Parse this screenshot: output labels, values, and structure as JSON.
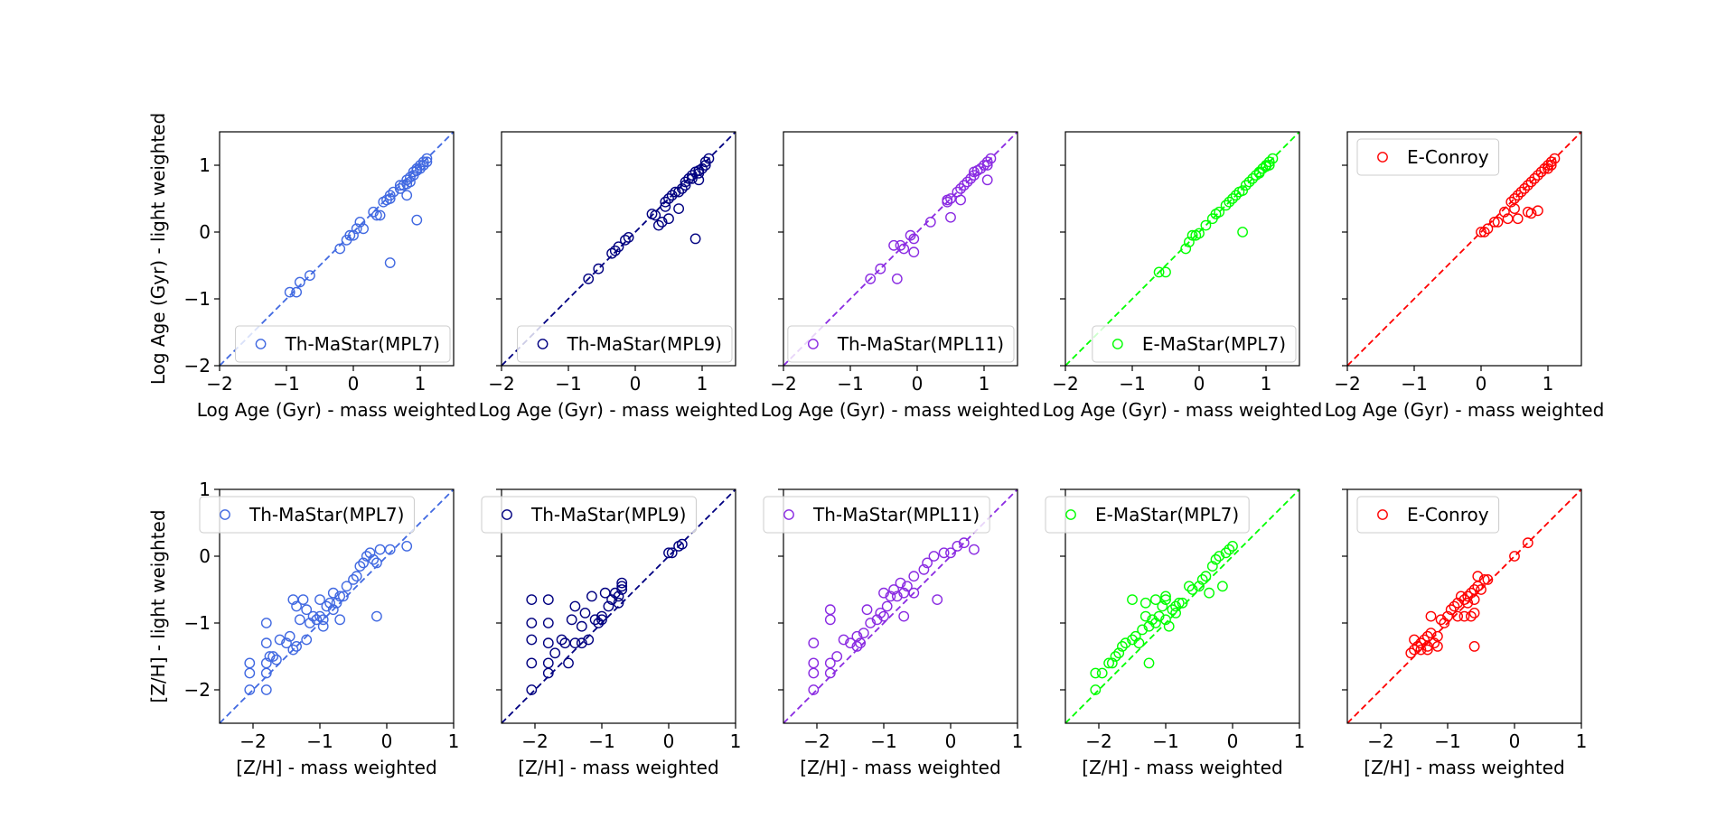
{
  "chart_data": [
    {
      "type": "scatter",
      "row": "age",
      "color": "#4169e1",
      "legend": "Th-MaStar(MPL7)",
      "legend_loc": "lower right",
      "xlabel": "Log Age (Gyr) - mass weighted",
      "ylabel": "Log Age (Gyr) - light weighted",
      "xlim": [
        -2,
        1.5
      ],
      "ylim": [
        -2,
        1.5
      ],
      "xticks": [
        -2,
        -1,
        0,
        1
      ],
      "yticks": [
        -2,
        -1,
        0,
        1
      ],
      "identity_line": true,
      "x": [
        -0.95,
        -0.85,
        -0.8,
        -0.65,
        -0.2,
        -0.1,
        -0.05,
        0.0,
        0.05,
        0.1,
        0.15,
        0.3,
        0.35,
        0.45,
        0.5,
        0.55,
        0.55,
        0.6,
        0.7,
        0.75,
        0.8,
        0.8,
        0.85,
        0.85,
        0.9,
        0.9,
        0.95,
        0.95,
        1.0,
        1.0,
        1.05,
        1.05,
        1.1,
        1.1,
        0.55,
        0.95,
        0.8,
        0.7,
        0.4
      ],
      "y": [
        -0.9,
        -0.9,
        -0.75,
        -0.65,
        -0.25,
        -0.12,
        -0.05,
        -0.05,
        0.05,
        0.15,
        0.05,
        0.3,
        0.25,
        0.45,
        0.48,
        0.5,
        -0.46,
        0.6,
        0.65,
        0.7,
        0.72,
        0.78,
        0.75,
        0.82,
        0.85,
        0.9,
        0.92,
        0.95,
        1.0,
        0.95,
        1.05,
        1.0,
        1.1,
        1.05,
        0.55,
        0.18,
        0.55,
        0.7,
        0.25
      ]
    },
    {
      "type": "scatter",
      "row": "age",
      "color": "#000080",
      "legend": "Th-MaStar(MPL9)",
      "legend_loc": "lower right",
      "xlabel": "Log Age (Gyr) - mass weighted",
      "ylabel": "",
      "xlim": [
        -2,
        1.5
      ],
      "ylim": [
        -2,
        1.5
      ],
      "xticks": [
        -2,
        -1,
        0,
        1
      ],
      "yticks": [
        -2,
        -1,
        0,
        1
      ],
      "identity_line": true,
      "x": [
        -0.7,
        -0.55,
        -0.35,
        -0.3,
        -0.25,
        -0.15,
        -0.1,
        0.25,
        0.3,
        0.4,
        0.45,
        0.45,
        0.5,
        0.55,
        0.6,
        0.65,
        0.7,
        0.75,
        0.75,
        0.8,
        0.85,
        0.85,
        0.9,
        0.95,
        0.95,
        1.0,
        1.05,
        1.05,
        1.1,
        0.9,
        0.95,
        0.65,
        0.5,
        0.35
      ],
      "y": [
        -0.7,
        -0.55,
        -0.32,
        -0.28,
        -0.22,
        -0.12,
        -0.08,
        0.27,
        0.25,
        0.15,
        0.45,
        0.38,
        0.5,
        0.55,
        0.6,
        0.6,
        0.65,
        0.7,
        0.75,
        0.8,
        0.85,
        0.8,
        0.9,
        0.92,
        0.88,
        0.95,
        1.05,
        1.0,
        1.1,
        -0.1,
        0.78,
        0.35,
        0.2,
        0.1
      ]
    },
    {
      "type": "scatter",
      "row": "age",
      "color": "#8a2be2",
      "legend": "Th-MaStar(MPL11)",
      "legend_loc": "lower right",
      "xlabel": "Log Age (Gyr) - mass weighted",
      "ylabel": "",
      "xlim": [
        -2,
        1.5
      ],
      "ylim": [
        -2,
        1.5
      ],
      "xticks": [
        -2,
        -1,
        0,
        1
      ],
      "yticks": [
        -2,
        -1,
        0,
        1
      ],
      "identity_line": true,
      "x": [
        -0.7,
        -0.55,
        -0.35,
        -0.25,
        -0.2,
        -0.1,
        -0.05,
        0.2,
        0.45,
        0.45,
        0.5,
        0.6,
        0.65,
        0.7,
        0.75,
        0.8,
        0.85,
        0.85,
        0.9,
        0.95,
        1.0,
        1.05,
        1.05,
        1.1,
        1.05,
        0.65,
        0.5,
        -0.05,
        -0.3
      ],
      "y": [
        -0.7,
        -0.55,
        -0.2,
        -0.2,
        -0.25,
        -0.05,
        -0.1,
        0.15,
        0.45,
        0.48,
        0.5,
        0.6,
        0.65,
        0.7,
        0.75,
        0.8,
        0.85,
        0.9,
        0.92,
        0.95,
        1.0,
        1.05,
        1.0,
        1.1,
        0.78,
        0.48,
        0.22,
        -0.3,
        -0.7
      ]
    },
    {
      "type": "scatter",
      "row": "age",
      "color": "#00ff00",
      "legend": "E-MaStar(MPL7)",
      "legend_loc": "lower right",
      "xlabel": "Log Age (Gyr) - mass weighted",
      "ylabel": "",
      "xlim": [
        -2,
        1.5
      ],
      "ylim": [
        -2,
        1.5
      ],
      "xticks": [
        -2,
        -1,
        0,
        1
      ],
      "yticks": [
        -2,
        -1,
        0,
        1
      ],
      "identity_line": true,
      "x": [
        -0.6,
        -0.5,
        -0.2,
        -0.15,
        -0.05,
        0.0,
        0.1,
        0.2,
        0.25,
        0.3,
        0.4,
        0.45,
        0.5,
        0.55,
        0.6,
        0.65,
        0.7,
        0.75,
        0.8,
        0.85,
        0.9,
        0.9,
        0.95,
        1.0,
        1.0,
        1.05,
        1.05,
        1.1,
        0.65,
        -0.1
      ],
      "y": [
        -0.6,
        -0.6,
        -0.25,
        -0.15,
        -0.05,
        -0.02,
        0.1,
        0.2,
        0.27,
        0.3,
        0.4,
        0.45,
        0.5,
        0.55,
        0.6,
        0.62,
        0.7,
        0.75,
        0.8,
        0.85,
        0.88,
        0.9,
        0.95,
        1.0,
        0.98,
        1.05,
        1.0,
        1.1,
        0.0,
        -0.05
      ]
    },
    {
      "type": "scatter",
      "row": "age",
      "color": "#ff0000",
      "legend": "E-Conroy",
      "legend_loc": "upper left",
      "xlabel": "Log Age (Gyr) - mass weighted",
      "ylabel": "",
      "xlim": [
        -2,
        1.5
      ],
      "ylim": [
        -2,
        1.5
      ],
      "xticks": [
        -2,
        -1,
        0,
        1
      ],
      "yticks": [
        -2,
        -1,
        0,
        1
      ],
      "identity_line": true,
      "x": [
        0.0,
        0.05,
        0.1,
        0.2,
        0.25,
        0.35,
        0.4,
        0.45,
        0.5,
        0.55,
        0.6,
        0.65,
        0.7,
        0.75,
        0.8,
        0.85,
        0.9,
        0.95,
        1.0,
        1.0,
        1.05,
        1.05,
        1.1,
        0.5,
        0.55,
        0.7,
        0.75,
        0.85
      ],
      "y": [
        0.0,
        0.0,
        0.05,
        0.15,
        0.15,
        0.3,
        0.2,
        0.45,
        0.5,
        0.55,
        0.6,
        0.65,
        0.7,
        0.75,
        0.8,
        0.85,
        0.9,
        0.95,
        1.0,
        0.95,
        1.05,
        1.0,
        1.1,
        0.35,
        0.2,
        0.3,
        0.28,
        0.32
      ]
    },
    {
      "type": "scatter",
      "row": "metallicity",
      "color": "#4169e1",
      "legend": "Th-MaStar(MPL7)",
      "legend_loc": "upper left",
      "xlabel": "[Z/H] - mass weighted",
      "ylabel": "[Z/H] - light weighted",
      "xlim": [
        -2.5,
        1
      ],
      "ylim": [
        -2.5,
        1
      ],
      "xticks": [
        -2,
        -1,
        0,
        1
      ],
      "yticks": [
        -2,
        -1,
        0,
        1
      ],
      "identity_line": true,
      "x": [
        -2.05,
        -2.05,
        -2.05,
        -1.8,
        -1.8,
        -1.8,
        -1.8,
        -1.7,
        -1.65,
        -1.6,
        -1.5,
        -1.45,
        -1.4,
        -1.4,
        -1.35,
        -1.3,
        -1.25,
        -1.2,
        -1.15,
        -1.1,
        -1.05,
        -1.0,
        -1.0,
        -0.95,
        -0.9,
        -0.85,
        -0.8,
        -0.75,
        -0.7,
        -0.7,
        -0.65,
        -0.6,
        -0.5,
        -0.45,
        -0.4,
        -0.35,
        -0.3,
        -0.25,
        -0.2,
        -0.15,
        -0.1,
        0.05,
        0.3,
        -0.15,
        -1.8,
        -1.75,
        -1.35,
        -1.2,
        -0.8,
        -0.95
      ],
      "y": [
        -2.0,
        -1.6,
        -1.75,
        -1.75,
        -1.6,
        -1.3,
        -1.0,
        -1.5,
        -1.55,
        -1.25,
        -1.3,
        -1.2,
        -1.4,
        -0.65,
        -0.75,
        -0.95,
        -0.65,
        -0.8,
        -1.0,
        -0.9,
        -0.95,
        -0.9,
        -0.65,
        -0.95,
        -0.75,
        -0.7,
        -0.55,
        -0.7,
        -0.6,
        -0.95,
        -0.6,
        -0.45,
        -0.35,
        -0.3,
        -0.15,
        -0.1,
        0.0,
        0.05,
        -0.05,
        -0.1,
        0.1,
        0.1,
        0.15,
        -0.9,
        -2.0,
        -1.5,
        -1.35,
        -1.25,
        -0.8,
        -1.05
      ]
    },
    {
      "type": "scatter",
      "row": "metallicity",
      "color": "#000080",
      "legend": "Th-MaStar(MPL9)",
      "legend_loc": "upper left",
      "xlabel": "[Z/H] - mass weighted",
      "ylabel": "",
      "xlim": [
        -2.5,
        1
      ],
      "ylim": [
        -2.5,
        1
      ],
      "xticks": [
        -2,
        -1,
        0,
        1
      ],
      "yticks": [
        -2,
        -1,
        0,
        1
      ],
      "identity_line": true,
      "x": [
        -2.05,
        -2.05,
        -2.05,
        -2.05,
        -2.05,
        -1.8,
        -1.8,
        -1.8,
        -1.8,
        -1.8,
        -1.7,
        -1.6,
        -1.55,
        -1.45,
        -1.4,
        -1.3,
        -1.3,
        -1.25,
        -1.2,
        -1.1,
        -1.05,
        -1.0,
        -1.0,
        -0.95,
        -0.9,
        -0.85,
        -0.8,
        -0.75,
        -0.75,
        -0.7,
        -0.7,
        -0.7,
        0.0,
        0.05,
        0.15,
        0.2,
        -1.5,
        -1.4,
        -1.15
      ],
      "y": [
        -2.0,
        -1.6,
        -1.25,
        -1.0,
        -0.65,
        -1.75,
        -1.6,
        -1.3,
        -1.0,
        -0.65,
        -1.45,
        -1.25,
        -1.3,
        -0.95,
        -1.3,
        -1.3,
        -1.05,
        -0.85,
        -1.25,
        -0.95,
        -1.0,
        -0.95,
        -0.9,
        -0.55,
        -0.75,
        -0.65,
        -0.55,
        -0.6,
        -0.7,
        -0.4,
        -0.5,
        -0.45,
        0.05,
        0.05,
        0.15,
        0.18,
        -1.6,
        -0.75,
        -0.6
      ]
    },
    {
      "type": "scatter",
      "row": "metallicity",
      "color": "#8a2be2",
      "legend": "Th-MaStar(MPL11)",
      "legend_loc": "upper left",
      "xlabel": "[Z/H] - mass weighted",
      "ylabel": "",
      "xlim": [
        -2.5,
        1
      ],
      "ylim": [
        -2.5,
        1
      ],
      "xticks": [
        -2,
        -1,
        0,
        1
      ],
      "yticks": [
        -2,
        -1,
        0,
        1
      ],
      "identity_line": true,
      "x": [
        -2.05,
        -2.05,
        -2.05,
        -2.05,
        -1.8,
        -1.8,
        -1.8,
        -1.8,
        -1.7,
        -1.6,
        -1.5,
        -1.4,
        -1.35,
        -1.3,
        -1.25,
        -1.2,
        -1.1,
        -1.05,
        -1.0,
        -1.0,
        -0.95,
        -0.9,
        -0.85,
        -0.75,
        -0.7,
        -0.65,
        -0.55,
        -0.4,
        -0.35,
        -0.25,
        -0.1,
        0.0,
        0.1,
        0.2,
        0.35,
        -0.7,
        -0.8,
        -0.2,
        -1.4,
        -0.55
      ],
      "y": [
        -2.0,
        -1.75,
        -1.6,
        -1.3,
        -1.75,
        -1.6,
        -0.95,
        -0.8,
        -1.5,
        -1.25,
        -1.3,
        -1.2,
        -1.3,
        -1.15,
        -0.8,
        -1.0,
        -0.95,
        -0.85,
        -0.55,
        -0.9,
        -0.75,
        -0.6,
        -0.5,
        -0.4,
        -0.55,
        -0.45,
        -0.3,
        -0.2,
        -0.1,
        0.0,
        0.05,
        0.05,
        0.15,
        0.2,
        0.1,
        -0.9,
        -0.6,
        -0.65,
        -1.35,
        -0.55
      ]
    },
    {
      "type": "scatter",
      "row": "metallicity",
      "color": "#00ff00",
      "legend": "E-MaStar(MPL7)",
      "legend_loc": "upper left",
      "xlabel": "[Z/H] - mass weighted",
      "ylabel": "",
      "xlim": [
        -2.5,
        1
      ],
      "ylim": [
        -2.5,
        1
      ],
      "xticks": [
        -2,
        -1,
        0,
        1
      ],
      "yticks": [
        -2,
        -1,
        0,
        1
      ],
      "identity_line": true,
      "x": [
        -2.05,
        -2.05,
        -1.95,
        -1.85,
        -1.8,
        -1.75,
        -1.7,
        -1.65,
        -1.6,
        -1.5,
        -1.45,
        -1.4,
        -1.35,
        -1.3,
        -1.25,
        -1.2,
        -1.15,
        -1.1,
        -1.05,
        -1.0,
        -1.0,
        -0.95,
        -0.9,
        -0.85,
        -0.8,
        -0.75,
        -0.65,
        -0.6,
        -0.5,
        -0.45,
        -0.4,
        -0.3,
        -0.25,
        -0.2,
        -0.1,
        -0.05,
        0.0,
        -1.5,
        -1.3,
        -1.15,
        -1.25,
        -1.0,
        -0.85,
        -0.35,
        -0.15
      ],
      "y": [
        -2.0,
        -1.75,
        -1.75,
        -1.6,
        -1.6,
        -1.5,
        -1.45,
        -1.35,
        -1.3,
        -1.25,
        -1.2,
        -1.3,
        -1.1,
        -0.9,
        -1.05,
        -0.95,
        -1.0,
        -0.9,
        -0.75,
        -0.6,
        -0.95,
        -1.05,
        -0.8,
        -0.85,
        -0.7,
        -0.7,
        -0.45,
        -0.5,
        -0.45,
        -0.35,
        -0.3,
        -0.15,
        -0.05,
        0.0,
        0.05,
        0.1,
        0.15,
        -0.65,
        -0.7,
        -0.65,
        -1.6,
        -0.65,
        -0.75,
        -0.55,
        -0.45
      ]
    },
    {
      "type": "scatter",
      "row": "metallicity",
      "color": "#ff0000",
      "legend": "E-Conroy",
      "legend_loc": "upper left",
      "xlabel": "[Z/H] - mass weighted",
      "ylabel": "",
      "xlim": [
        -2.5,
        1
      ],
      "ylim": [
        -2.5,
        1
      ],
      "xticks": [
        -2,
        -1,
        0,
        1
      ],
      "yticks": [
        -2,
        -1,
        0,
        1
      ],
      "identity_line": true,
      "x": [
        -1.55,
        -1.5,
        -1.5,
        -1.45,
        -1.4,
        -1.4,
        -1.35,
        -1.3,
        -1.3,
        -1.25,
        -1.25,
        -1.2,
        -1.15,
        -1.1,
        -1.05,
        -1.0,
        -0.95,
        -0.9,
        -0.85,
        -0.8,
        -0.75,
        -0.7,
        -0.7,
        -0.65,
        -0.6,
        -0.6,
        -0.55,
        -0.55,
        -0.5,
        -0.45,
        -0.6,
        -0.65,
        -0.75,
        -0.85,
        -1.3,
        -1.15,
        -0.6,
        -0.4,
        0.0,
        0.2
      ],
      "y": [
        -1.45,
        -1.4,
        -1.25,
        -1.35,
        -1.3,
        -1.4,
        -1.25,
        -1.35,
        -1.2,
        -1.15,
        -0.9,
        -1.3,
        -1.2,
        -0.95,
        -1.0,
        -0.9,
        -0.8,
        -0.75,
        -0.7,
        -0.6,
        -0.65,
        -0.6,
        -0.7,
        -0.55,
        -0.5,
        -0.65,
        -0.45,
        -0.3,
        -0.5,
        -0.35,
        -1.35,
        -0.9,
        -0.9,
        -0.9,
        -1.4,
        -1.35,
        -0.85,
        -0.35,
        0.0,
        0.2
      ]
    }
  ]
}
